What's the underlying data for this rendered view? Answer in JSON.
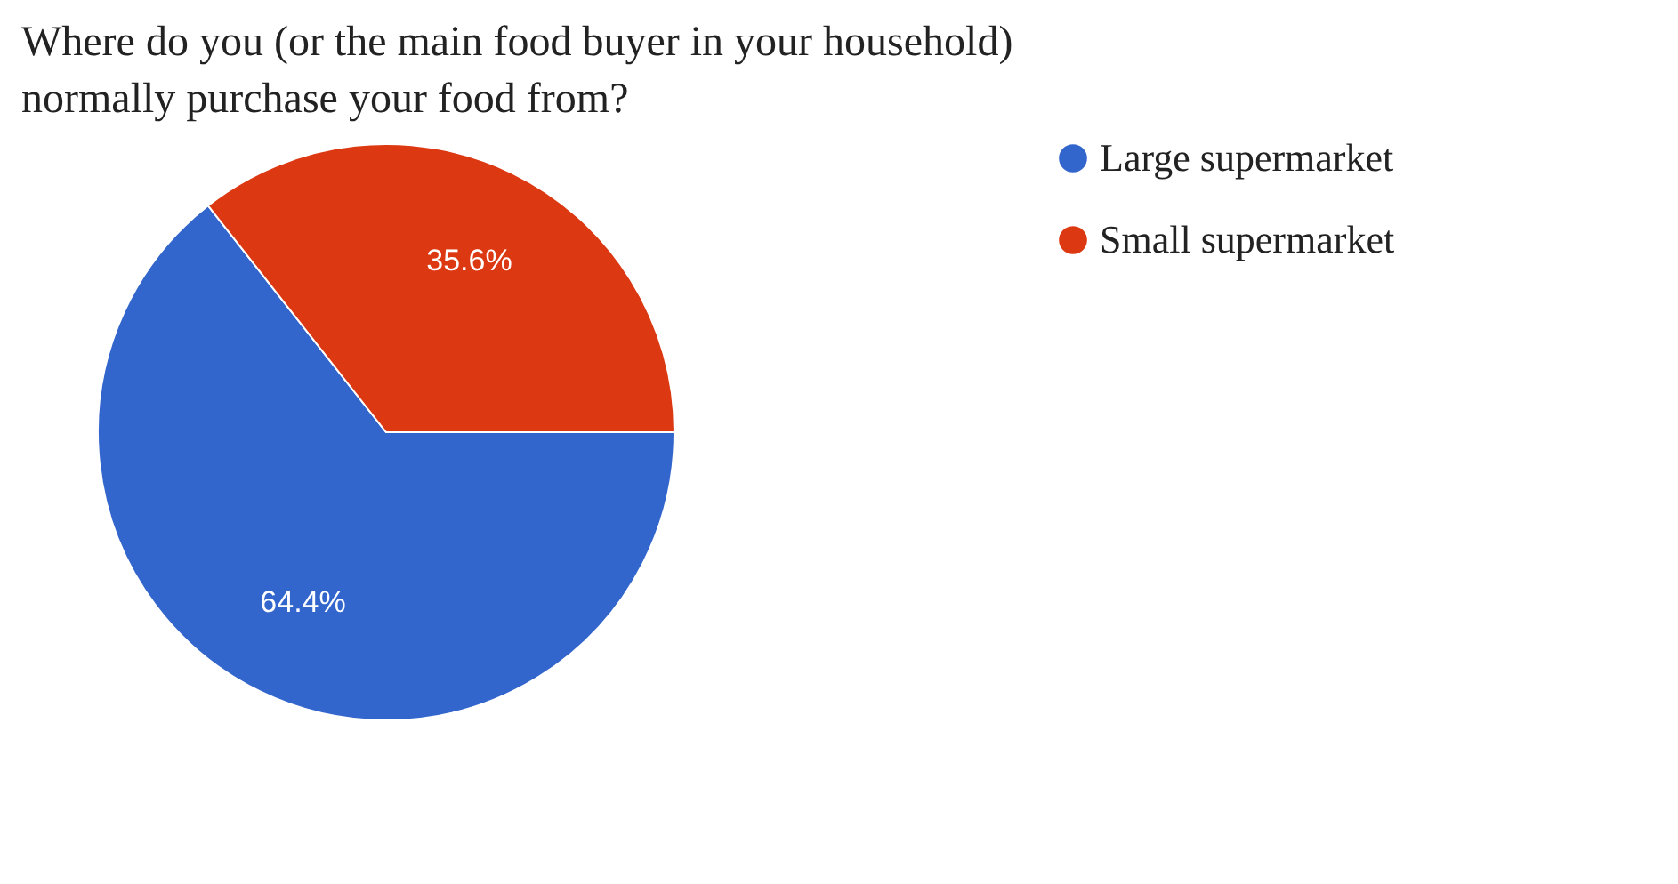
{
  "chart_data": {
    "type": "pie",
    "title": [
      "Where do you (or the main food buyer in your household)",
      "normally purchase your food from?"
    ],
    "categories": [
      "Large supermarket",
      "Small supermarket"
    ],
    "values": [
      64.4,
      35.6
    ],
    "value_labels": [
      "64.4%",
      "35.6%"
    ],
    "colors": [
      "#3366cc",
      "#dc3912"
    ],
    "legend": "top right"
  }
}
